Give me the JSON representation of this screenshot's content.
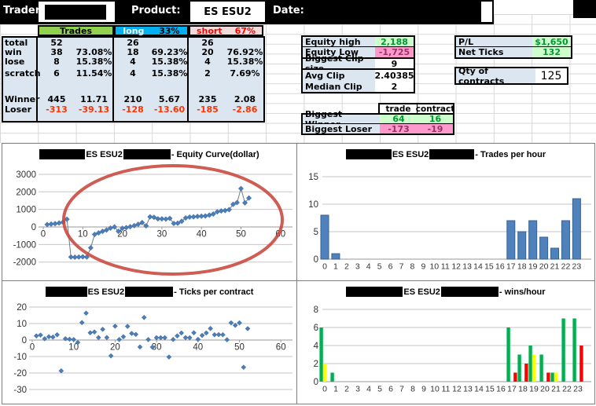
{
  "header": {
    "trader_label": "Trader:",
    "product_label": "Product:",
    "product_value": "ES ESU2",
    "date_label": "Date:"
  },
  "stats": {
    "headers": {
      "trades": "Trades",
      "long": "long",
      "long_pct": "33%",
      "short": "short",
      "short_pct": "67%"
    },
    "rows": [
      {
        "label": "total",
        "t": "52",
        "tp": "",
        "l": "26",
        "lp": "",
        "s": "26",
        "sp": ""
      },
      {
        "label": "win",
        "t": "38",
        "tp": "73.08%",
        "l": "18",
        "lp": "69.23%",
        "s": "20",
        "sp": "76.92%"
      },
      {
        "label": "lose",
        "t": "8",
        "tp": "15.38%",
        "l": "4",
        "lp": "15.38%",
        "s": "4",
        "sp": "15.38%"
      },
      {
        "label": "scratch",
        "t": "6",
        "tp": "11.54%",
        "l": "4",
        "lp": "15.38%",
        "s": "2",
        "sp": "7.69%"
      },
      {
        "label": "Winner",
        "t": "445",
        "tp": "11.71",
        "l": "210",
        "lp": "5.67",
        "s": "235",
        "sp": "2.08"
      },
      {
        "label": "Loser",
        "t": "-313",
        "tp": "-39.13",
        "l": "-128",
        "lp": "-13.60",
        "s": "-185",
        "sp": "-2.86"
      }
    ]
  },
  "equity_stats": {
    "equity_high_label": "Equity high",
    "equity_high": "2,188",
    "equity_low_label": "Equity Low",
    "equity_low": "-1,725",
    "biggest_clip_label": "Biggest Clip size",
    "biggest_clip": "9",
    "avg_clip_label": "Avg Clip",
    "avg_clip": "2.40385",
    "median_clip_label": "Median Clip",
    "median_clip": "2"
  },
  "pl_stats": {
    "pl_label": "P/L",
    "pl": "$1,650",
    "net_ticks_label": "Net Ticks",
    "net_ticks": "132",
    "qty_label": "Qty of contracts",
    "qty": "125"
  },
  "biggest": {
    "col_trade": "trade",
    "col_contract": "contract",
    "winner_label": "Biggest Winner",
    "winner_trade": "64",
    "winner_contract": "16",
    "loser_label": "Biggest Loser",
    "loser_trade": "-173",
    "loser_contract": "-19"
  },
  "colors": {
    "header_green": "#92D050",
    "header_cyan": "#00B0F0",
    "header_pink": "#F2DCDB",
    "cell_blue": "#DCE6F1",
    "pos_bg": "#CCFFCC",
    "neg_bg": "#FF99CC",
    "pos_text": "#009933",
    "neg_text": "#993366",
    "red_text": "#FF3300",
    "bar_blue": "#4F81BD",
    "win_green": "#00B050",
    "scratch_yellow": "#FFFF00",
    "loss_red": "#FF0000",
    "ellipse_red": "#C8473C"
  },
  "chart_data": [
    {
      "type": "line",
      "title_product": "ES ESU2",
      "title_suffix": "- Equity Curve(dollar)",
      "x_start": 1,
      "values": [
        138,
        163,
        188,
        225,
        275,
        438,
        -1713,
        -1725,
        -1713,
        -1700,
        -1713,
        -1188,
        -425,
        -338,
        -250,
        -175,
        -63,
        0,
        -250,
        -75,
        -38,
        13,
        75,
        150,
        250,
        63,
        575,
        550,
        463,
        463,
        450,
        488,
        200,
        213,
        325,
        513,
        563,
        575,
        600,
        613,
        625,
        675,
        738,
        863,
        913,
        938,
        988,
        1288,
        1388,
        2188,
        1375,
        1650
      ],
      "xticks": [
        0,
        10,
        20,
        30,
        40,
        50,
        60
      ],
      "yticks": [
        -2000,
        -1000,
        0,
        1000,
        2000,
        3000
      ],
      "xlim": [
        0,
        63
      ],
      "ylim": [
        -2000,
        3000
      ],
      "marker_color": "#4A7EBB",
      "line_color": "#6A7B8D",
      "annotation": "red-ellipse",
      "annotation_color": "#C8473C"
    },
    {
      "type": "bar",
      "title_product": "ES ESU2",
      "title_suffix": "- Trades per hour",
      "categories": [
        "0",
        "1",
        "2",
        "3",
        "4",
        "5",
        "6",
        "7",
        "8",
        "9",
        "10",
        "11",
        "12",
        "13",
        "14",
        "15",
        "16",
        "17",
        "18",
        "19",
        "20",
        "21",
        "22",
        "23"
      ],
      "values": [
        8,
        1,
        0,
        0,
        0,
        0,
        0,
        0,
        0,
        0,
        0,
        0,
        0,
        0,
        0,
        0,
        0,
        7,
        5,
        7,
        4,
        2,
        7,
        11
      ],
      "yticks": [
        0,
        5,
        10,
        15
      ],
      "ylim": [
        0,
        15
      ],
      "bar_color": "#4F81BD"
    },
    {
      "type": "scatter",
      "title_product": "ES ESU2",
      "title_suffix": "- Ticks per contract",
      "x_start": 1,
      "values": [
        2.5,
        3,
        0.8,
        2,
        1.8,
        3.2,
        -18.7,
        0.8,
        0.5,
        0.3,
        -1.5,
        10.6,
        16.3,
        4.4,
        4.9,
        1.5,
        6.5,
        1.5,
        -9.6,
        8.4,
        0.3,
        2,
        8.3,
        4,
        3.4,
        -4.2,
        13.7,
        0.3,
        -4.3,
        1.4,
        1.4,
        1.4,
        -10.3,
        0.3,
        2.5,
        4.3,
        1.5,
        1.4,
        4.4,
        0.4,
        2.8,
        4.3,
        7,
        3.2,
        3.3,
        3.2,
        0.2,
        10.4,
        8.9,
        10.4,
        -16.5,
        6.9
      ],
      "xticks": [
        0,
        10,
        20,
        30,
        40,
        50,
        60
      ],
      "yticks": [
        -30,
        -20,
        -10,
        0,
        10,
        20
      ],
      "xlim": [
        0,
        63
      ],
      "ylim": [
        -30,
        20
      ],
      "marker_color": "#4A7EBB"
    },
    {
      "type": "grouped-bar",
      "title_product": "ES ESU2",
      "title_suffix": "- wins/hour",
      "categories": [
        "0",
        "1",
        "2",
        "3",
        "4",
        "5",
        "6",
        "7",
        "8",
        "9",
        "10",
        "11",
        "12",
        "13",
        "14",
        "15",
        "16",
        "17",
        "18",
        "19",
        "20",
        "21",
        "22",
        "23"
      ],
      "series": [
        {
          "name": "wins",
          "color": "#00B050",
          "values": [
            6,
            1,
            0,
            0,
            0,
            0,
            0,
            0,
            0,
            0,
            0,
            0,
            0,
            0,
            0,
            0,
            0,
            6,
            3,
            4,
            3,
            1,
            7,
            7
          ]
        },
        {
          "name": "scratches",
          "color": "#FFFF00",
          "values": [
            2,
            0,
            0,
            0,
            0,
            0,
            0,
            0,
            0,
            0,
            0,
            0,
            0,
            0,
            0,
            0,
            0,
            0,
            0,
            3,
            0,
            1,
            0,
            0
          ]
        },
        {
          "name": "losses",
          "color": "#FF0000",
          "values": [
            0,
            0,
            0,
            0,
            0,
            0,
            0,
            0,
            0,
            0,
            0,
            0,
            0,
            0,
            0,
            0,
            0,
            1,
            2,
            0,
            1,
            0,
            0,
            4
          ]
        }
      ],
      "yticks": [
        0,
        2,
        4,
        6,
        8
      ],
      "ylim": [
        0,
        8
      ]
    }
  ]
}
